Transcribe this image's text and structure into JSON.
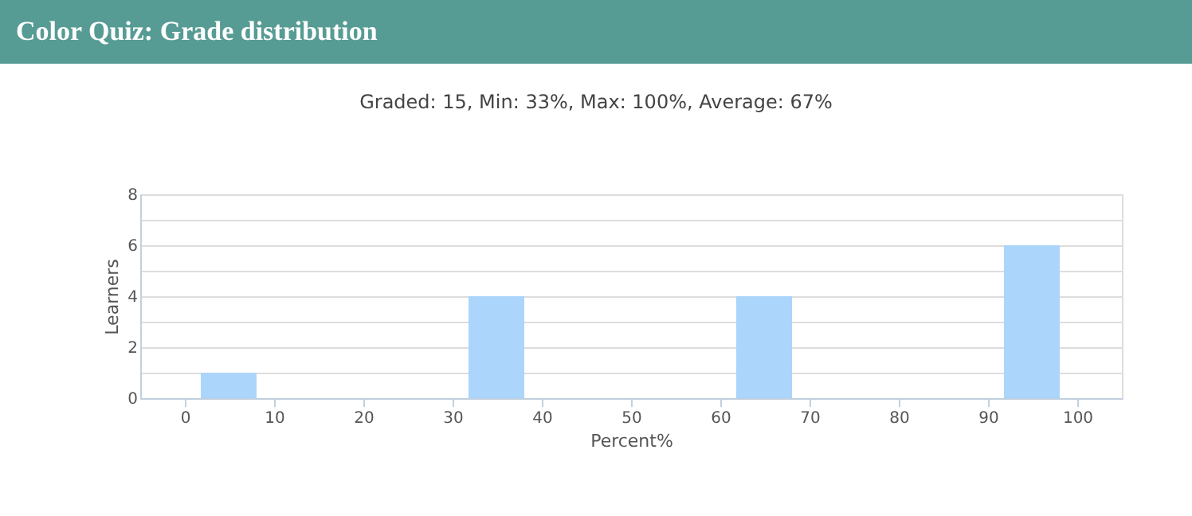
{
  "chart_data": {
    "type": "histogram",
    "title": "Color Quiz: Grade distribution",
    "subtitle": "Graded: 15, Min: 33%, Max: 100%, Average: 67%",
    "xlabel": "Percent%",
    "ylabel": "Learners",
    "bins": [
      0,
      10,
      20,
      30,
      40,
      50,
      60,
      70,
      80,
      90,
      100
    ],
    "values": [
      1,
      0,
      0,
      4,
      0,
      0,
      4,
      0,
      0,
      6
    ],
    "color": "#abd5fb",
    "xlim": [
      -5,
      105
    ],
    "xticks": [
      0,
      10,
      20,
      30,
      40,
      50,
      60,
      70,
      80,
      90,
      100
    ],
    "ylim": [
      0,
      8
    ],
    "yticks": [
      0,
      {
        "value": 1,
        "label": null
      },
      2,
      {
        "value": 3,
        "label": null
      },
      4,
      {
        "value": 5,
        "label": null
      },
      6,
      {
        "value": 7,
        "label": null
      },
      8
    ],
    "grid": "y"
  }
}
